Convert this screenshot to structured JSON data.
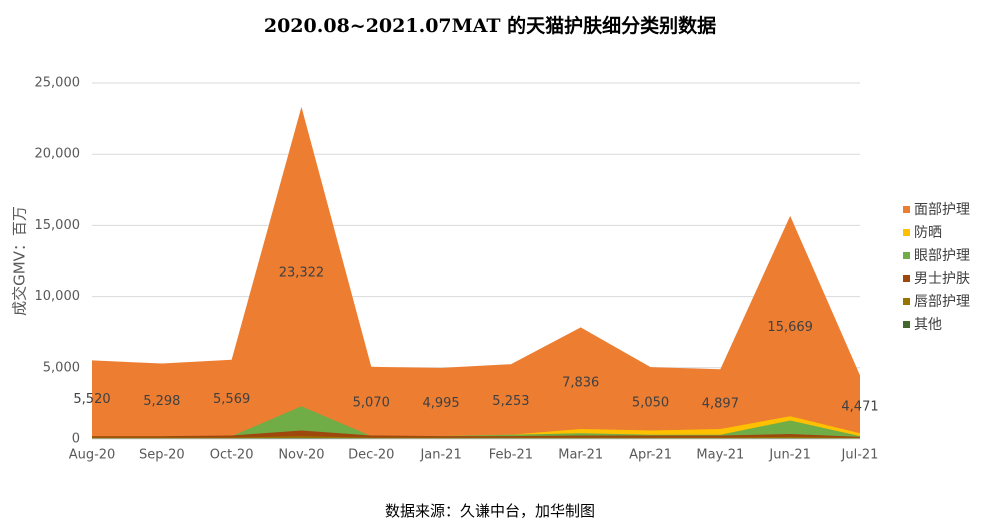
{
  "chart_data": {
    "type": "area",
    "title": "2020.08~2021.07MAT 的天猫护肤细分类别数据",
    "y_label": "成交GMV：百万",
    "source": "数据来源：久谦中台，加华制图",
    "categories": [
      "Aug-20",
      "Sep-20",
      "Oct-20",
      "Nov-20",
      "Dec-20",
      "Jan-21",
      "Feb-21",
      "Mar-21",
      "Apr-21",
      "May-21",
      "Jun-21",
      "Jul-21"
    ],
    "series": [
      {
        "name": "面部护理",
        "color": "#ED7D31",
        "values": [
          5520,
          5298,
          5569,
          23322,
          5070,
          4995,
          5253,
          7836,
          5050,
          4897,
          15669,
          4471
        ],
        "value_labels": [
          "5,520",
          "5,298",
          "5,569",
          "23,322",
          "5,070",
          "4,995",
          "5,253",
          "7,836",
          "5,050",
          "4,897",
          "15,669",
          "4,471"
        ]
      },
      {
        "name": "防晒",
        "color": "#FFC000",
        "values": [
          200,
          200,
          200,
          300,
          200,
          200,
          300,
          700,
          600,
          700,
          1600,
          400
        ]
      },
      {
        "name": "眼部护理",
        "color": "#70AD47",
        "values": [
          150,
          150,
          200,
          2300,
          200,
          200,
          300,
          400,
          300,
          300,
          1300,
          200
        ]
      },
      {
        "name": "男士护肤",
        "color": "#9E480E",
        "values": [
          200,
          200,
          250,
          600,
          250,
          200,
          200,
          250,
          250,
          250,
          350,
          150
        ]
      },
      {
        "name": "唇部护理",
        "color": "#997300",
        "values": [
          100,
          100,
          100,
          200,
          100,
          100,
          100,
          100,
          100,
          100,
          150,
          80
        ]
      },
      {
        "name": "其他",
        "color": "#43682B",
        "values": [
          50,
          50,
          50,
          80,
          50,
          50,
          50,
          50,
          50,
          50,
          60,
          40
        ]
      }
    ],
    "ylim": [
      0,
      25000
    ],
    "yticks": [
      0,
      {
        "value": 5000,
        "label": "5,000"
      },
      {
        "value": 10000,
        "label": "10,000"
      },
      {
        "value": 15000,
        "label": "15,000"
      },
      {
        "value": 20000,
        "label": "20,000"
      },
      {
        "value": 25000,
        "label": "25,000"
      }
    ],
    "grid": true
  }
}
